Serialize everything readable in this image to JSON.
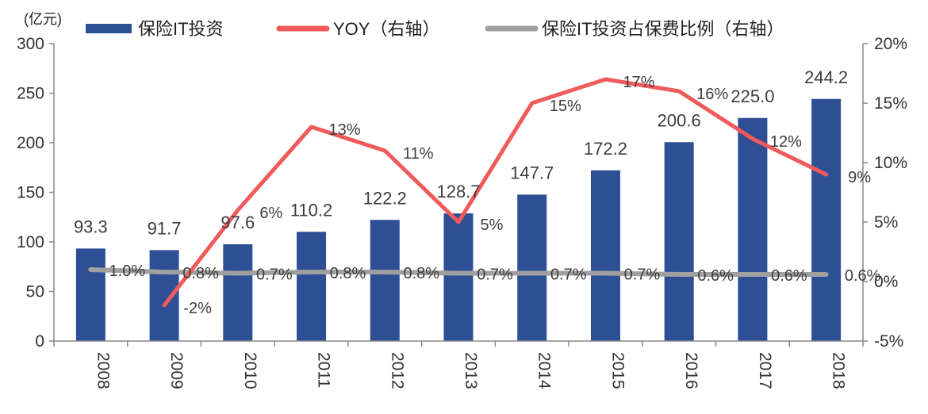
{
  "chart_data": {
    "type": "bar",
    "unit_label": "(亿元)",
    "categories": [
      "2008",
      "2009",
      "2010",
      "2011",
      "2012",
      "2013",
      "2014",
      "2015",
      "2016",
      "2017",
      "2018"
    ],
    "series": [
      {
        "name": "保险IT投资",
        "type": "bar",
        "axis": "left",
        "color": "#2e4f96",
        "values": [
          93.3,
          91.7,
          97.6,
          110.2,
          122.2,
          128.7,
          147.7,
          172.2,
          200.6,
          225.0,
          244.2
        ],
        "labels": [
          "93.3",
          "91.7",
          "97.6",
          "110.2",
          "122.2",
          "128.7",
          "147.7",
          "172.2",
          "200.6",
          "225.0",
          "244.2"
        ]
      },
      {
        "name": "YOY（右轴）",
        "type": "line",
        "axis": "right",
        "color": "#f05a5a",
        "values": [
          null,
          -2,
          6,
          13,
          11,
          5,
          15,
          17,
          16,
          12,
          9
        ],
        "labels": [
          null,
          "-2%",
          "6%",
          "13%",
          "11%",
          "5%",
          "15%",
          "17%",
          "16%",
          "12%",
          "9%"
        ]
      },
      {
        "name": "保险IT投资占保费比例（右轴）",
        "type": "line",
        "axis": "right",
        "color": "#a0a0a0",
        "values": [
          1.0,
          0.8,
          0.7,
          0.8,
          0.8,
          0.7,
          0.7,
          0.7,
          0.6,
          0.6,
          0.6
        ],
        "labels": [
          "1.0%",
          "0.8%",
          "0.7%",
          "0.8%",
          "0.8%",
          "0.7%",
          "0.7%",
          "0.7%",
          "0.6%",
          "0.6%",
          "0.6%"
        ]
      }
    ],
    "y_left": {
      "range": [
        0,
        300
      ],
      "ticks": [
        0,
        50,
        100,
        150,
        200,
        250,
        300
      ],
      "tick_labels": [
        "0",
        "50",
        "100",
        "150",
        "200",
        "250",
        "300"
      ]
    },
    "y_right": {
      "range": [
        -5,
        20
      ],
      "ticks": [
        -5,
        0,
        5,
        10,
        15,
        20
      ],
      "tick_labels": [
        "-5%",
        "0%",
        "5%",
        "10%",
        "15%",
        "20%"
      ]
    },
    "grid": false,
    "legend_position": "top"
  }
}
